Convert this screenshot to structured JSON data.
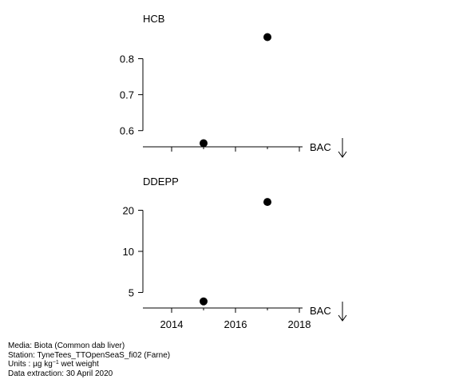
{
  "chart_data": [
    {
      "type": "scatter",
      "title": "HCB",
      "x": [
        2015,
        2017
      ],
      "y": [
        0.565,
        0.86
      ],
      "yticks": [
        0.6,
        0.7,
        0.8
      ],
      "ytick_labels": [
        "0.6",
        "0.7",
        "0.8"
      ],
      "ylim": [
        0.555,
        0.87
      ],
      "xlim": [
        2013.1,
        2018.1
      ],
      "xticks": [
        2014,
        2016,
        2018
      ],
      "show_xtick_labels": false,
      "reference_label": "BAC",
      "grid": false
    },
    {
      "type": "scatter",
      "title": "DDEPP",
      "x": [
        2015,
        2017
      ],
      "y": [
        4.3,
        23.0
      ],
      "yticks": [
        5,
        10,
        20
      ],
      "ytick_labels": [
        "5",
        "10",
        "20"
      ],
      "yscale": "log",
      "ylim": [
        3.9,
        26.0
      ],
      "xlim": [
        2013.1,
        2018.1
      ],
      "xticks": [
        2014,
        2016,
        2018
      ],
      "xtick_labels": [
        "2014",
        "2016",
        "2018"
      ],
      "show_xtick_labels": true,
      "reference_label": "BAC",
      "grid": false
    }
  ],
  "footer": {
    "media": "Media: Biota (Common dab liver)",
    "station": "Station: TyneTees_TTOpenSeaS_fi02 (Farne)",
    "units_prefix": "Units : µg kg",
    "units_exp": "−1",
    "units_suffix": " wet weight",
    "extraction": "Data extraction: 30 April 2020"
  }
}
